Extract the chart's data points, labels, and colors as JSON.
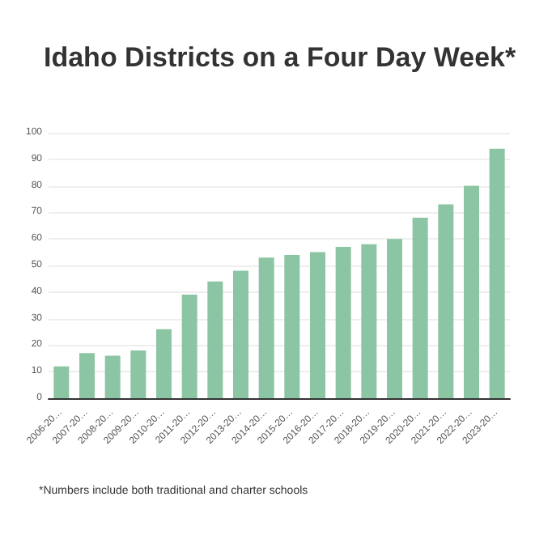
{
  "chart_data": {
    "type": "bar",
    "title": "Idaho Districts on a Four Day Week*",
    "categories": [
      "2006-20…",
      "2007-20…",
      "2008-20…",
      "2009-20…",
      "2010-20…",
      "2011-20…",
      "2012-20…",
      "2013-20…",
      "2014-20…",
      "2015-20…",
      "2016-20…",
      "2017-20…",
      "2018-20…",
      "2019-20…",
      "2020-20…",
      "2021-20…",
      "2022-20…",
      "2023-20…"
    ],
    "values": [
      12,
      17,
      16,
      18,
      26,
      39,
      44,
      48,
      53,
      54,
      55,
      57,
      58,
      60,
      68,
      73,
      80,
      94
    ],
    "color": "#8cc5a3",
    "ylim": [
      0,
      100
    ],
    "yticks": [
      0,
      10,
      20,
      30,
      40,
      50,
      60,
      70,
      80,
      90,
      100
    ],
    "grid": "y",
    "annotations": [
      "*Numbers include both traditional and charter schools"
    ]
  }
}
